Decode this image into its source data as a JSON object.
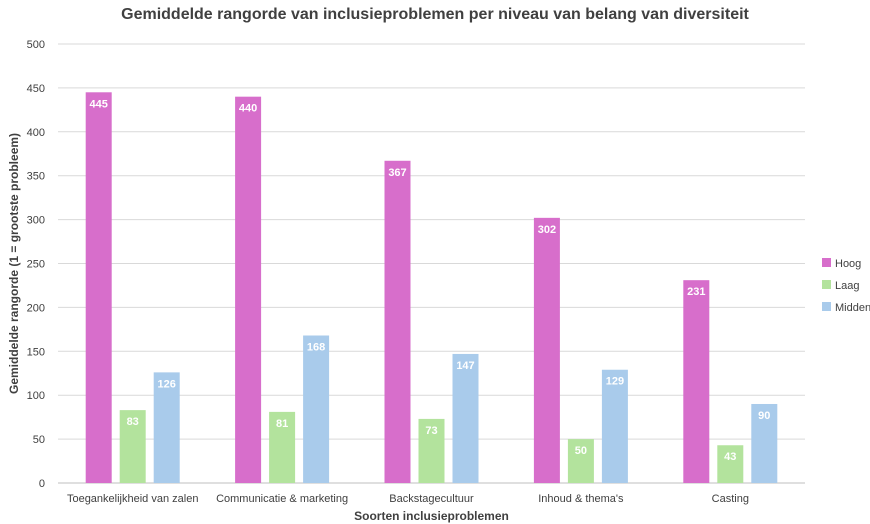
{
  "chart_data": {
    "type": "bar",
    "title": "Gemiddelde rangorde van inclusieproblemen per niveau van belang van diversiteit",
    "xlabel": "Soorten inclusieproblemen",
    "ylabel": "Gemiddelde rangorde (1 = grootste probleem)",
    "ylim": [
      0,
      500
    ],
    "yticks": [
      0,
      50,
      100,
      150,
      200,
      250,
      300,
      350,
      400,
      450,
      500
    ],
    "grid": true,
    "legend_position": "right",
    "categories": [
      "Toegankelijkheid van zalen",
      "Communicatie & marketing",
      "Backstagecultuur",
      "Inhoud & thema's",
      "Casting"
    ],
    "series": [
      {
        "name": "Hoog",
        "color": "#d76ecb",
        "values": [
          445,
          440,
          367,
          302,
          231
        ]
      },
      {
        "name": "Laag",
        "color": "#b3e39d",
        "values": [
          83,
          81,
          73,
          50,
          43
        ]
      },
      {
        "name": "Midden",
        "color": "#a9cbeb",
        "values": [
          126,
          168,
          147,
          129,
          90
        ]
      }
    ]
  }
}
